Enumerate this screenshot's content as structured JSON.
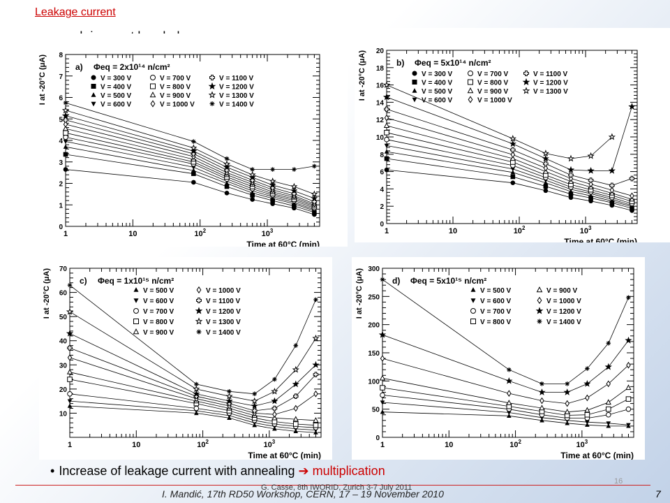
{
  "slide": {
    "title": "Leakage current",
    "bullet1": "guard rings not bonded",
    "bullet2_text": "Increase of leakage current with annealing",
    "bullet2_arrow": "➔",
    "bullet2_highlight": "multiplication",
    "page_number": "16",
    "footer_text": "I. Mandić, 17th RD50 Workshop, CERN, 17 – 19 November 2010",
    "footer_overlay": "G. Casse, 8th IWORID, Zurich 3-7 July 2011",
    "footer_slide": "7",
    "accent_color": "#cc0000"
  },
  "chart_data": [
    {
      "type": "line",
      "panel": "a)",
      "title": "Φeq = 2x10¹⁴ n/cm²",
      "xlabel": "Time at 60°C (min)",
      "ylabel": "I at -20°C (μA)",
      "xscale": "log",
      "xlim": [
        1,
        6000
      ],
      "ylim": [
        0,
        8
      ],
      "yticks": [
        0,
        1,
        2,
        3,
        4,
        5,
        6,
        7,
        8
      ],
      "x": [
        1,
        80,
        250,
        600,
        1200,
        2500,
        5000
      ],
      "legend_columns": 3,
      "legend_placement": "top",
      "series": [
        {
          "name": "V = 300 V",
          "marker": "circle-filled",
          "values": [
            2.65,
            2.05,
            1.55,
            1.25,
            1.05,
            0.85,
            0.55
          ]
        },
        {
          "name": "V = 400 V",
          "marker": "square-filled",
          "values": [
            3.35,
            2.45,
            1.85,
            1.45,
            1.2,
            0.95,
            0.65
          ]
        },
        {
          "name": "V = 500 V",
          "marker": "triangle-up-filled",
          "values": [
            3.7,
            2.6,
            2.0,
            1.55,
            1.3,
            1.05,
            0.72
          ]
        },
        {
          "name": "V = 600 V",
          "marker": "triangle-down-filled",
          "values": [
            3.95,
            2.75,
            2.1,
            1.65,
            1.38,
            1.12,
            0.78
          ]
        },
        {
          "name": "V = 700 V",
          "marker": "circle-open",
          "values": [
            4.15,
            2.9,
            2.2,
            1.75,
            1.45,
            1.2,
            0.85
          ]
        },
        {
          "name": "V = 800 V",
          "marker": "square-open",
          "values": [
            4.35,
            3.0,
            2.3,
            1.85,
            1.52,
            1.27,
            0.92
          ]
        },
        {
          "name": "V = 900 V",
          "marker": "triangle-up-open",
          "values": [
            4.55,
            3.12,
            2.4,
            1.95,
            1.6,
            1.35,
            0.98
          ]
        },
        {
          "name": "V = 1000 V",
          "marker": "diamond-open",
          "values": [
            4.75,
            3.25,
            2.5,
            2.05,
            1.7,
            1.42,
            1.05
          ]
        },
        {
          "name": "V = 1100 V",
          "marker": "cross-open",
          "values": [
            4.95,
            3.38,
            2.62,
            2.15,
            1.8,
            1.52,
            1.15
          ]
        },
        {
          "name": "V = 1200 V",
          "marker": "star-filled",
          "values": [
            5.15,
            3.5,
            2.75,
            2.28,
            1.92,
            1.65,
            1.3
          ]
        },
        {
          "name": "V = 1300 V",
          "marker": "star-open",
          "values": [
            5.4,
            3.65,
            2.9,
            2.4,
            2.1,
            1.85,
            1.5
          ]
        },
        {
          "name": "V = 1400 V",
          "marker": "asterisk",
          "values": [
            5.75,
            3.95,
            3.15,
            2.65,
            2.65,
            2.65,
            2.8
          ]
        }
      ]
    },
    {
      "type": "line",
      "panel": "b)",
      "title": "Φeq = 5x10¹⁴ n/cm²",
      "xlabel": "Time at 60°C (min)",
      "ylabel": "I at -20°C (μA)",
      "xscale": "log",
      "xlim": [
        1,
        6000
      ],
      "ylim": [
        0,
        20
      ],
      "yticks": [
        0,
        2,
        4,
        6,
        8,
        10,
        12,
        14,
        16,
        18,
        20
      ],
      "x": [
        1,
        80,
        250,
        600,
        1200,
        2500,
        5000
      ],
      "legend_columns": 3,
      "legend_placement": "top",
      "series": [
        {
          "name": "V = 300 V",
          "marker": "circle-filled",
          "values": [
            6.2,
            4.7,
            3.8,
            3.0,
            2.6,
            2.1,
            1.5
          ]
        },
        {
          "name": "V = 400 V",
          "marker": "square-filled",
          "values": [
            7.5,
            5.4,
            4.3,
            3.4,
            2.95,
            2.4,
            1.75
          ]
        },
        {
          "name": "V = 500 V",
          "marker": "triangle-up-filled",
          "values": [
            8.3,
            5.9,
            4.7,
            3.7,
            3.2,
            2.6,
            1.95
          ]
        },
        {
          "name": "V = 600 V",
          "marker": "triangle-down-filled",
          "values": [
            9.0,
            6.3,
            5.0,
            3.95,
            3.45,
            2.8,
            2.1
          ]
        },
        {
          "name": "V = 700 V",
          "marker": "circle-open",
          "values": [
            9.7,
            6.7,
            5.3,
            4.2,
            3.65,
            3.0,
            2.3
          ]
        },
        {
          "name": "V = 800 V",
          "marker": "square-open",
          "values": [
            10.5,
            7.1,
            5.6,
            4.5,
            3.9,
            3.25,
            2.55
          ]
        },
        {
          "name": "V = 900 V",
          "marker": "triangle-up-open",
          "values": [
            11.3,
            7.5,
            6.0,
            4.85,
            4.2,
            3.5,
            2.8
          ]
        },
        {
          "name": "V = 1000 V",
          "marker": "diamond-open",
          "values": [
            12.2,
            7.95,
            6.4,
            5.2,
            4.55,
            3.85,
            3.2
          ]
        },
        {
          "name": "V = 1100 V",
          "marker": "cross-open",
          "values": [
            13.2,
            8.5,
            6.9,
            5.6,
            5.0,
            4.4,
            5.2
          ]
        },
        {
          "name": "V = 1200 V",
          "marker": "star-filled",
          "values": [
            14.6,
            9.2,
            7.5,
            6.2,
            6.1,
            6.1,
            13.5
          ]
        },
        {
          "name": "V = 1300 V",
          "marker": "star-open",
          "values": [
            16.0,
            9.8,
            8.1,
            7.5,
            7.8,
            10.0,
            null
          ]
        }
      ]
    },
    {
      "type": "line",
      "panel": "c)",
      "title": "Φeq = 1x10¹⁵ n/cm²",
      "xlabel": "Time at 60°C (min)",
      "ylabel": "I at -20°C (μA)",
      "xscale": "log",
      "xlim": [
        1,
        6000
      ],
      "ylim": [
        0,
        70
      ],
      "yticks": [
        10,
        20,
        30,
        40,
        50,
        60,
        70
      ],
      "x": [
        1,
        80,
        250,
        600,
        1200,
        2500,
        5000
      ],
      "legend_columns": 2,
      "legend_placement": "top",
      "series": [
        {
          "name": "V = 500 V",
          "marker": "triangle-up-filled",
          "values": [
            13,
            10,
            8,
            5,
            3.5,
            2.5,
            2
          ]
        },
        {
          "name": "V = 600 V",
          "marker": "triangle-down-filled",
          "values": [
            15,
            11,
            9,
            6,
            4.5,
            3.5,
            3
          ]
        },
        {
          "name": "V = 700 V",
          "marker": "circle-open",
          "values": [
            18,
            12,
            10,
            7,
            5.5,
            4.5,
            4
          ]
        },
        {
          "name": "V = 800 V",
          "marker": "square-open",
          "values": [
            24,
            14,
            11,
            8,
            6.5,
            5.5,
            5
          ]
        },
        {
          "name": "V = 900 V",
          "marker": "triangle-up-open",
          "values": [
            27,
            15,
            12,
            9,
            8,
            7.5,
            7
          ]
        },
        {
          "name": "V = 1000 V",
          "marker": "diamond-open",
          "values": [
            33,
            16,
            13,
            10,
            9.5,
            12,
            18
          ]
        },
        {
          "name": "V = 1100 V",
          "marker": "cross-open",
          "values": [
            37,
            17,
            14,
            11,
            12,
            17,
            26
          ]
        },
        {
          "name": "V = 1200 V",
          "marker": "star-filled",
          "values": [
            43,
            18,
            15,
            13,
            15,
            22,
            30
          ]
        },
        {
          "name": "V = 1300 V",
          "marker": "star-open",
          "values": [
            52,
            20,
            17,
            15,
            19,
            28,
            41
          ]
        },
        {
          "name": "V = 1400 V",
          "marker": "asterisk",
          "values": [
            63,
            22,
            19,
            18,
            24,
            38,
            57
          ]
        }
      ]
    },
    {
      "type": "line",
      "panel": "d)",
      "title": "Φeq = 5x10¹⁵ n/cm²",
      "xlabel": "Time at 60°C (min)",
      "ylabel": "I at -20°C (μA)",
      "xscale": "log",
      "xlim": [
        1,
        6000
      ],
      "ylim": [
        0,
        300
      ],
      "yticks": [
        0,
        50,
        100,
        150,
        200,
        250,
        300
      ],
      "x": [
        1,
        80,
        250,
        600,
        1200,
        2500,
        5000
      ],
      "legend_columns": 2,
      "legend_placement": "top",
      "series": [
        {
          "name": "V = 500 V",
          "marker": "triangle-up-filled",
          "values": [
            45,
            38,
            30,
            25,
            22,
            20,
            20
          ]
        },
        {
          "name": "V = 600 V",
          "marker": "triangle-down-filled",
          "values": [
            62,
            44,
            35,
            30,
            27,
            25,
            22
          ]
        },
        {
          "name": "V = 700 V",
          "marker": "circle-open",
          "values": [
            75,
            50,
            40,
            34,
            34,
            40,
            50
          ]
        },
        {
          "name": "V = 800 V",
          "marker": "square-open",
          "values": [
            88,
            55,
            46,
            39,
            40,
            50,
            68
          ]
        },
        {
          "name": "V = 900 V",
          "marker": "triangle-up-open",
          "values": [
            105,
            61,
            52,
            45,
            48,
            62,
            88
          ]
        },
        {
          "name": "V = 1000 V",
          "marker": "diamond-open",
          "values": [
            140,
            78,
            65,
            60,
            70,
            95,
            128
          ]
        },
        {
          "name": "V = 1200 V",
          "marker": "star-filled",
          "values": [
            182,
            100,
            80,
            80,
            95,
            125,
            172
          ]
        },
        {
          "name": "V = 1400 V",
          "marker": "asterisk",
          "values": [
            280,
            120,
            95,
            95,
            122,
            167,
            248
          ]
        }
      ]
    }
  ]
}
